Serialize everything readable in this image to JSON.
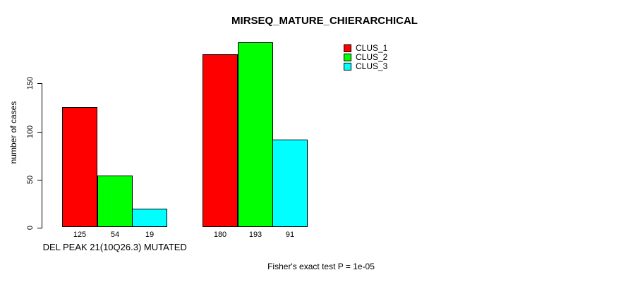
{
  "title": "MIRSEQ_MATURE_CHIERARCHICAL",
  "ylabel": "number of cases",
  "footer": "Fisher's exact test P = 1e-05",
  "legend": [
    {
      "label": "CLUS_1",
      "color": "#ff0000"
    },
    {
      "label": "CLUS_2",
      "color": "#00ff00"
    },
    {
      "label": "CLUS_3",
      "color": "#00ffff"
    }
  ],
  "chart_data": {
    "type": "bar",
    "title": "MIRSEQ_MATURE_CHIERARCHICAL",
    "xlabel": "",
    "ylabel": "number of cases",
    "ylim": [
      0,
      150
    ],
    "yticks": [
      0,
      50,
      100,
      150
    ],
    "grid": false,
    "legend_position": "top-right",
    "series_names": [
      "CLUS_1",
      "CLUS_2",
      "CLUS_3"
    ],
    "series_colors": [
      "#ff0000",
      "#00ff00",
      "#00ffff"
    ],
    "groups": [
      {
        "label": "DEL PEAK 21(10Q26.3) MUTATED",
        "values": [
          125,
          54,
          19
        ]
      },
      {
        "label": "",
        "values": [
          180,
          193,
          91
        ]
      }
    ],
    "bar_value_labels": [
      125,
      54,
      19,
      180,
      193,
      91
    ],
    "annotation": "Fisher's exact test P = 1e-05"
  }
}
